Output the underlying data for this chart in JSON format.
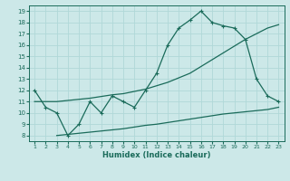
{
  "title": "",
  "xlabel": "Humidex (Indice chaleur)",
  "bg_color": "#cce8e8",
  "line_color": "#1a6b5a",
  "grid_color": "#b0d8d8",
  "xlim": [
    0.5,
    23.5
  ],
  "ylim": [
    7.5,
    19.5
  ],
  "xticks": [
    1,
    2,
    3,
    4,
    5,
    6,
    7,
    8,
    9,
    10,
    11,
    12,
    13,
    14,
    15,
    16,
    17,
    18,
    19,
    20,
    21,
    22,
    23
  ],
  "yticks": [
    8,
    9,
    10,
    11,
    12,
    13,
    14,
    15,
    16,
    17,
    18,
    19
  ],
  "line1_x": [
    1,
    2,
    3,
    4,
    5,
    6,
    7,
    8,
    9,
    10,
    11,
    12,
    13,
    14,
    15,
    16,
    17,
    18,
    19,
    20,
    21,
    22,
    23
  ],
  "line1_y": [
    12,
    10.5,
    10,
    8,
    9,
    11,
    10,
    11.5,
    11,
    10.5,
    12,
    13.5,
    16,
    17.5,
    18.2,
    19,
    18,
    17.7,
    17.5,
    16.5,
    13,
    11.5,
    11
  ],
  "line2_x": [
    1,
    2,
    3,
    4,
    5,
    6,
    7,
    8,
    9,
    10,
    11,
    12,
    13,
    14,
    15,
    16,
    17,
    18,
    19,
    20,
    21,
    22,
    23
  ],
  "line2_y": [
    11.0,
    11.0,
    11.0,
    11.1,
    11.2,
    11.3,
    11.45,
    11.6,
    11.7,
    11.9,
    12.1,
    12.4,
    12.7,
    13.1,
    13.5,
    14.1,
    14.7,
    15.3,
    15.9,
    16.5,
    17.0,
    17.5,
    17.8
  ],
  "line3_x": [
    3,
    4,
    5,
    6,
    7,
    8,
    9,
    10,
    11,
    12,
    13,
    14,
    15,
    16,
    17,
    18,
    19,
    20,
    21,
    22,
    23
  ],
  "line3_y": [
    8.0,
    8.1,
    8.2,
    8.3,
    8.4,
    8.5,
    8.6,
    8.75,
    8.9,
    9.0,
    9.15,
    9.3,
    9.45,
    9.6,
    9.75,
    9.9,
    10.0,
    10.1,
    10.2,
    10.3,
    10.5
  ]
}
